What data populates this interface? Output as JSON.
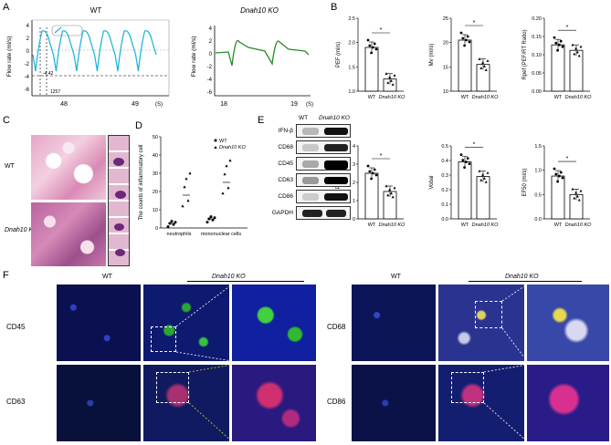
{
  "panels": [
    "A",
    "B",
    "C",
    "D",
    "E",
    "F"
  ],
  "panel_A": {
    "left": {
      "title": "WT",
      "ylabel": "Flow rate (ml/s)",
      "yticks": [
        "4",
        "2",
        "0",
        "-2",
        "-4",
        "-6"
      ],
      "xticks": [
        "48",
        "49"
      ],
      "xunit": "(S)",
      "annot1": "-4.42",
      "annot2": "1257"
    },
    "right": {
      "title": "Dnah10 KO",
      "ylabel": "Flow rate (ml/s)",
      "yticks": [
        "4",
        "2",
        "0",
        "-2",
        "-4",
        "-6"
      ],
      "xticks": [
        "18",
        "19"
      ],
      "xunit": "(S)"
    },
    "colors": {
      "wt": "#22b5d8",
      "ko": "#2a8a2a"
    }
  },
  "panel_B": {
    "charts": [
      {
        "ylabel": "PEF (ml/s)",
        "yticks": [
          "2.5",
          "2.0",
          "1.5",
          "1.0"
        ],
        "ylim": [
          1.0,
          2.5
        ],
        "categories": [
          "WT",
          "Dnah10 KO"
        ],
        "values": [
          1.9,
          1.25
        ],
        "sig": "*"
      },
      {
        "ylabel": "Mv (ml/s)",
        "yticks": [
          "25",
          "20",
          "15",
          "10"
        ],
        "ylim": [
          10,
          25
        ],
        "categories": [
          "WT",
          "Dnah10 KO"
        ],
        "values": [
          20.5,
          15.5
        ],
        "sig": "*"
      },
      {
        "ylabel": "Rpef (PEF/RT Ratio)",
        "yticks": [
          "0.20",
          "0.15",
          "0.10",
          "0.05",
          "0.00"
        ],
        "ylim": [
          0,
          0.2
        ],
        "categories": [
          "WT",
          "Dnah10 KO"
        ],
        "values": [
          0.127,
          0.112
        ],
        "sig": "*"
      },
      {
        "ylabel": "PenH",
        "yticks": [
          "4",
          "3",
          "2",
          "1",
          "0"
        ],
        "ylim": [
          0,
          4
        ],
        "categories": [
          "WT",
          "Dnah10 KO"
        ],
        "values": [
          2.5,
          1.5
        ],
        "sig": "*"
      },
      {
        "ylabel": "Vobal",
        "yticks": [
          "0.5",
          "0.4",
          "0.3",
          "0.2",
          "0.1",
          "0.0"
        ],
        "ylim": [
          0,
          0.5
        ],
        "categories": [
          "WT",
          "Dnah10 KO"
        ],
        "values": [
          0.39,
          0.29
        ],
        "sig": "*"
      },
      {
        "ylabel": "EF50 (ml/s)",
        "yticks": [
          "1.5",
          "1.0",
          "0.5",
          "0.0"
        ],
        "ylim": [
          0,
          1.5
        ],
        "categories": [
          "WT",
          "Dnah10 KO"
        ],
        "values": [
          0.88,
          0.5
        ],
        "sig": "*"
      }
    ]
  },
  "panel_C": {
    "row1": "WT",
    "row2": "Dnah10 KO"
  },
  "panel_D": {
    "ylabel": "The counts of inflammatory cell",
    "yticks": [
      "50",
      "40",
      "30",
      "20",
      "10",
      "0"
    ],
    "ylim": [
      0,
      50
    ],
    "categories": [
      "neutrophils",
      "mononuclear cells"
    ],
    "legend": [
      "WT",
      "Dnah10 KO"
    ],
    "series": [
      {
        "name": "WT",
        "values": [
          2.5,
          5
        ]
      },
      {
        "name": "Dnah10 KO",
        "values": [
          18,
          25
        ]
      }
    ]
  },
  "panel_E": {
    "headers": [
      "WT",
      "Dnah10 KO"
    ],
    "rows": [
      "IFN-β",
      "CD68",
      "CD45",
      "CD63",
      "CD86",
      "GAPDH"
    ]
  },
  "panel_F": {
    "left_headers": [
      "WT",
      "Dnah10 KO"
    ],
    "right_headers": [
      "WT",
      "Dnah10 KO"
    ],
    "left_rows": [
      "CD45",
      "CD63"
    ],
    "right_rows": [
      "CD68",
      "CD86"
    ]
  }
}
